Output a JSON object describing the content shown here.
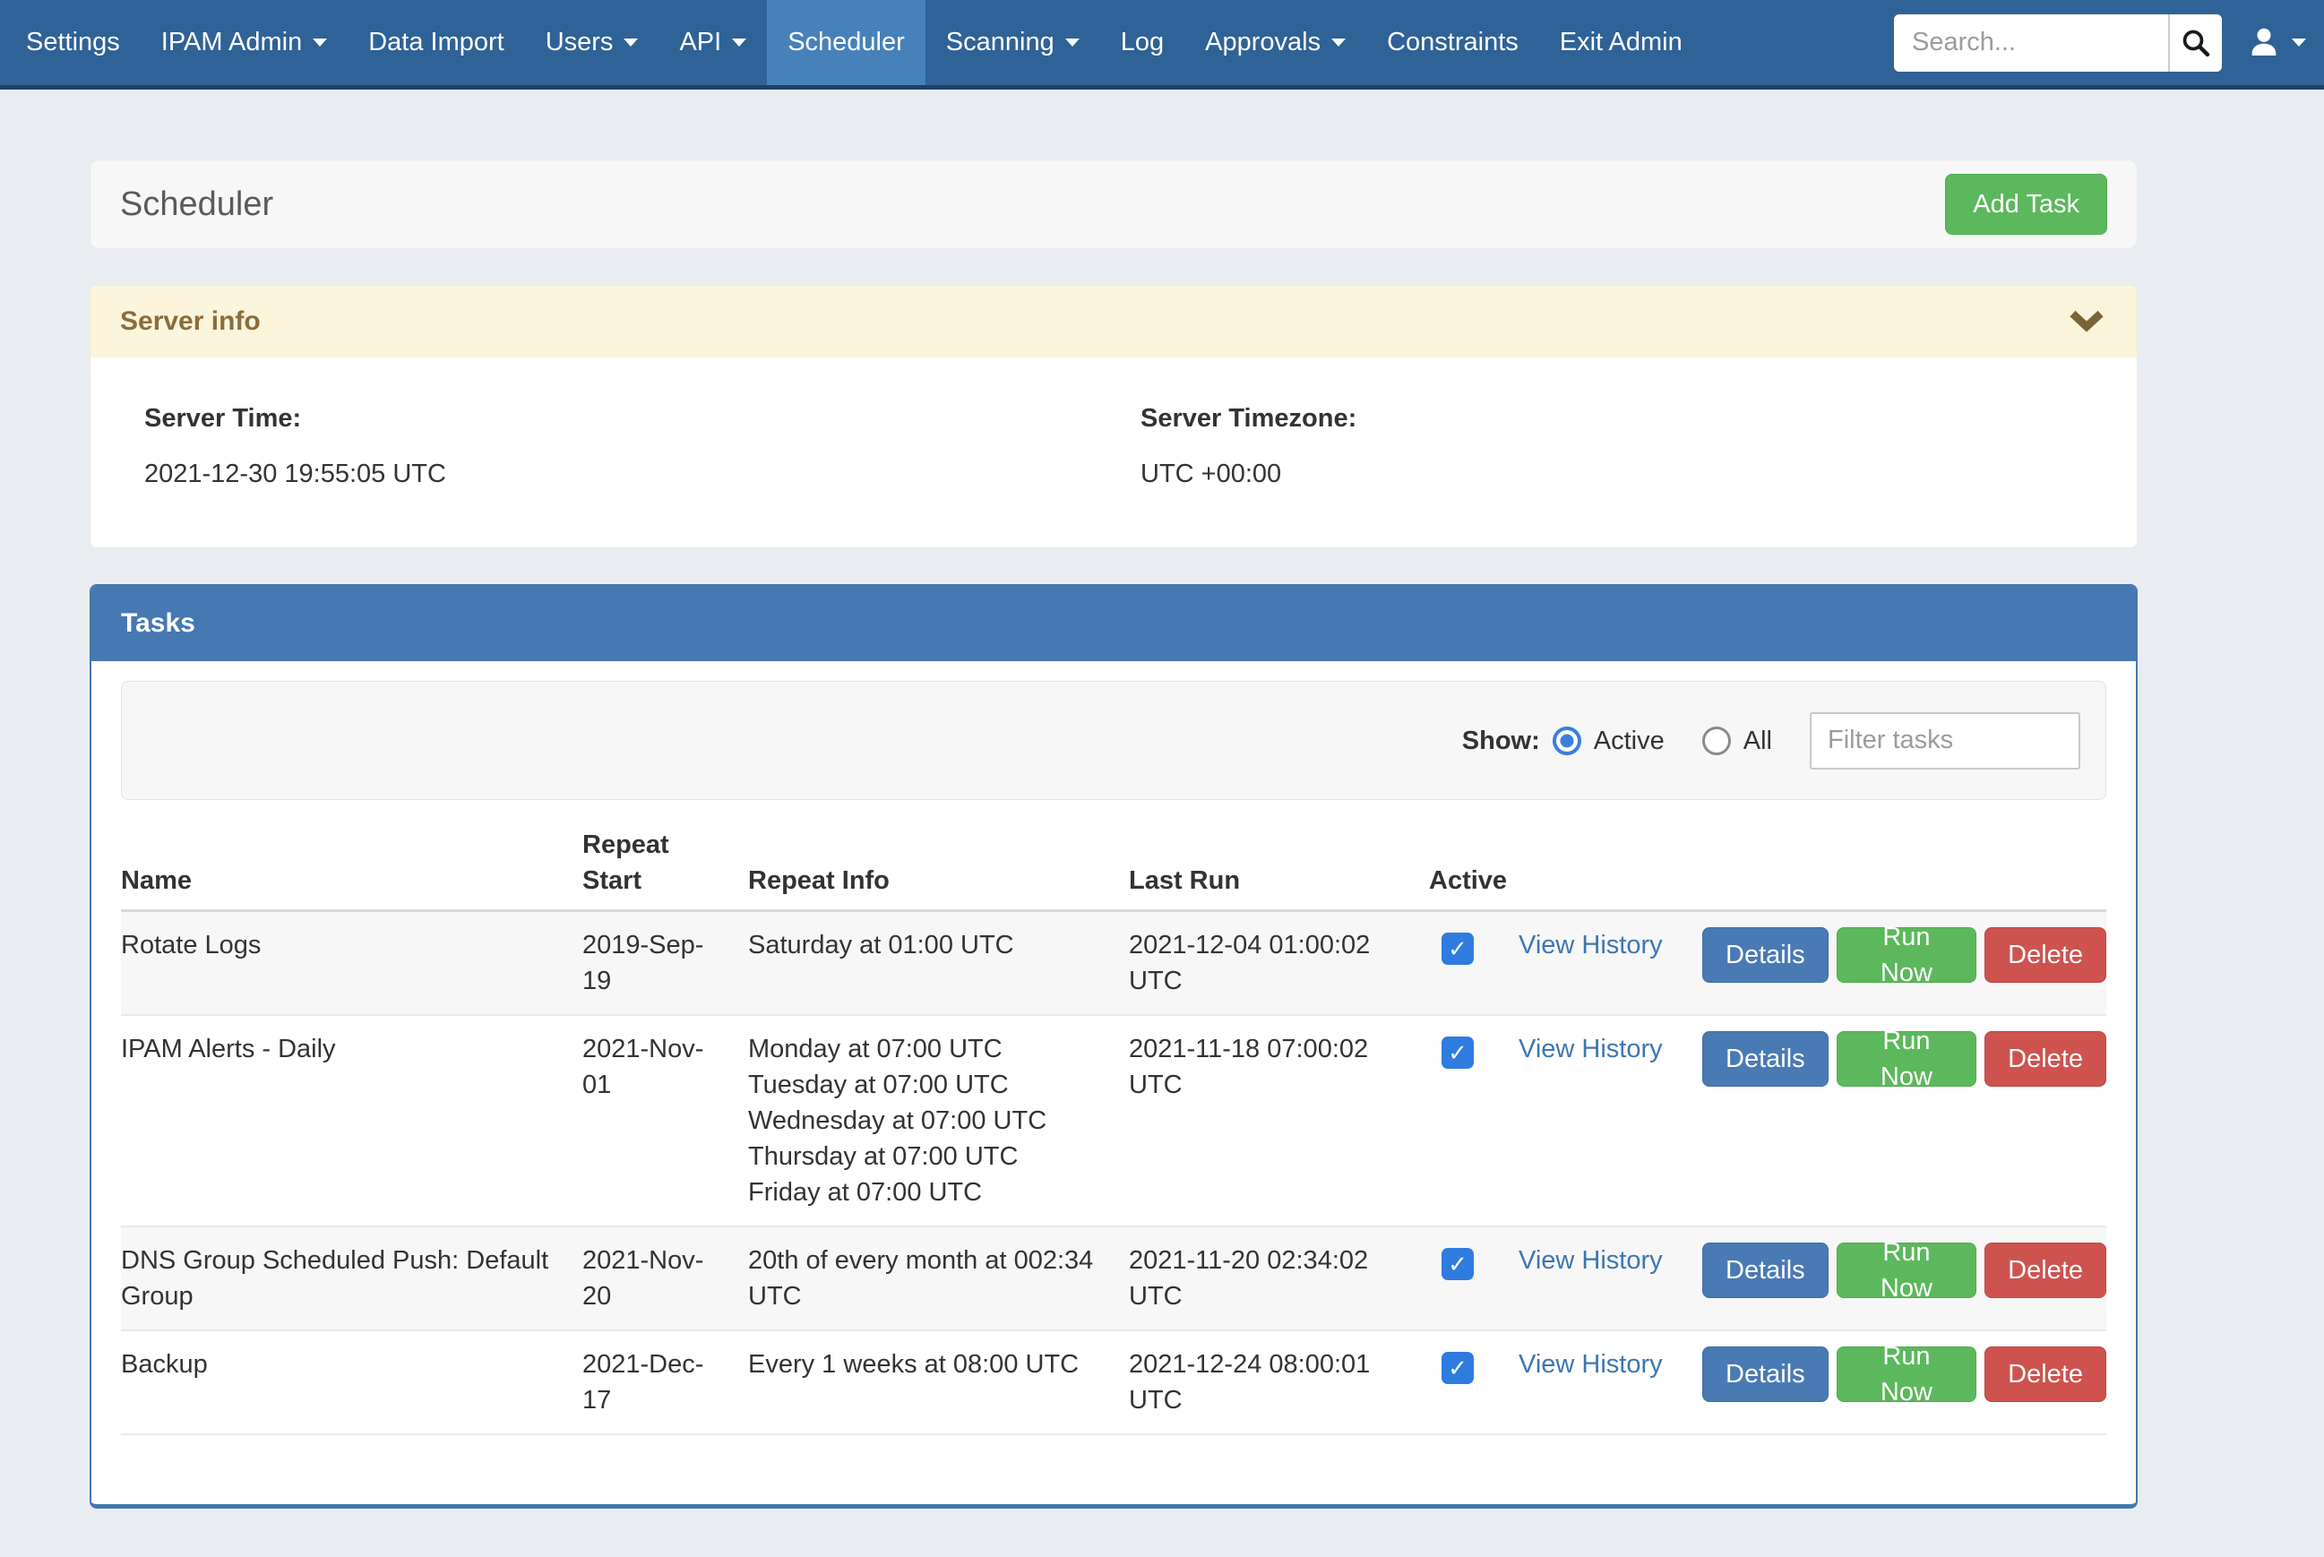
{
  "navbar": {
    "items": [
      {
        "label": "Settings",
        "dropdown": false,
        "active": false
      },
      {
        "label": "IPAM Admin",
        "dropdown": true,
        "active": false
      },
      {
        "label": "Data Import",
        "dropdown": false,
        "active": false
      },
      {
        "label": "Users",
        "dropdown": true,
        "active": false
      },
      {
        "label": "API",
        "dropdown": true,
        "active": false
      },
      {
        "label": "Scheduler",
        "dropdown": false,
        "active": true
      },
      {
        "label": "Scanning",
        "dropdown": true,
        "active": false
      },
      {
        "label": "Log",
        "dropdown": false,
        "active": false
      },
      {
        "label": "Approvals",
        "dropdown": true,
        "active": false
      },
      {
        "label": "Constraints",
        "dropdown": false,
        "active": false
      },
      {
        "label": "Exit Admin",
        "dropdown": false,
        "active": false
      }
    ],
    "search_placeholder": "Search...",
    "icons": {
      "search": "magnifier-icon",
      "user": "person-silhouette-icon",
      "dropdown": "caret-down-icon"
    }
  },
  "page": {
    "title": "Scheduler",
    "add_task_label": "Add Task"
  },
  "server_info": {
    "title": "Server info",
    "collapse_icon": "chevron-down-icon",
    "server_time_label": "Server Time:",
    "server_time": "2021-12-30 19:55:05 UTC",
    "server_timezone_label": "Server Timezone:",
    "server_timezone": "UTC +00:00"
  },
  "tasks": {
    "title": "Tasks",
    "show_label": "Show:",
    "filter_options": [
      {
        "label": "Active",
        "selected": true
      },
      {
        "label": "All",
        "selected": false
      }
    ],
    "filter_placeholder": "Filter tasks",
    "columns": [
      "Name",
      "Repeat Start",
      "Repeat Info",
      "Last Run",
      "Active"
    ],
    "actions": {
      "view_history": "View History",
      "details": "Details",
      "run_now": "Run Now",
      "delete": "Delete"
    },
    "rows": [
      {
        "name": "Rotate Logs",
        "repeat_start": "2019-Sep-19",
        "repeat_info": [
          "Saturday at 01:00 UTC"
        ],
        "last_run": "2021-12-04 01:00:02 UTC",
        "active": true
      },
      {
        "name": "IPAM Alerts - Daily",
        "repeat_start": "2021-Nov-01",
        "repeat_info": [
          "Monday at 07:00 UTC",
          "Tuesday at 07:00 UTC",
          "Wednesday at 07:00 UTC",
          "Thursday at 07:00 UTC",
          "Friday at 07:00 UTC"
        ],
        "last_run": "2021-11-18 07:00:02 UTC",
        "active": true
      },
      {
        "name": "DNS Group Scheduled Push: Default Group",
        "repeat_start": "2021-Nov-20",
        "repeat_info": [
          "20th of every month at 002:34 UTC"
        ],
        "last_run": "2021-11-20 02:34:02 UTC",
        "active": true
      },
      {
        "name": "Backup",
        "repeat_start": "2021-Dec-17",
        "repeat_info": [
          "Every 1 weeks at 08:00 UTC"
        ],
        "last_run": "2021-12-24 08:00:01 UTC",
        "active": true
      }
    ]
  },
  "colors": {
    "navbar_bg": "#2F6296",
    "navbar_active_bg": "#4781B9",
    "panel_header_blue": "#4678B2",
    "button_blue": "#4A7AB4",
    "button_green": "#5CB85C",
    "button_red": "#CE534F",
    "link_blue": "#3D76B0",
    "server_header_bg": "#FBF5DC",
    "server_header_text": "#8A6D3B",
    "checkbox_blue": "#2F7CE0",
    "radio_blue": "#3B7EDD",
    "body_bg": "#E9EDF1"
  }
}
